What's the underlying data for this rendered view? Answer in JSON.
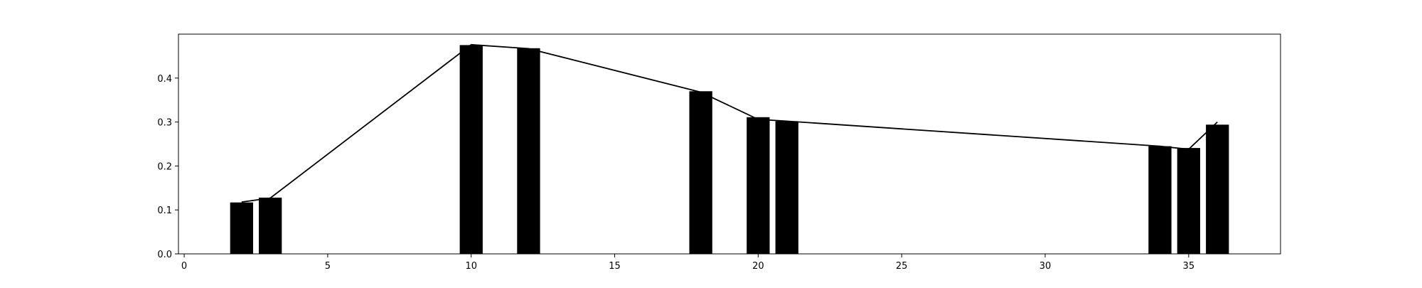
{
  "chart_data": {
    "type": "bar",
    "title": "",
    "xlabel": "",
    "ylabel": "",
    "xlim": [
      -0.2,
      38.2
    ],
    "ylim": [
      0,
      0.5
    ],
    "grid": false,
    "xticks": [
      "0",
      "5",
      "10",
      "15",
      "20",
      "25",
      "30",
      "35"
    ],
    "xtick_values": [
      0,
      5,
      10,
      15,
      20,
      25,
      30,
      35
    ],
    "yticks": [
      "0.0",
      "0.1",
      "0.2",
      "0.3",
      "0.4"
    ],
    "ytick_values": [
      0,
      0.1,
      0.2,
      0.3,
      0.4
    ],
    "bar_width": 0.8,
    "x": [
      2,
      3,
      10,
      12,
      18,
      20,
      21,
      34,
      35,
      36
    ],
    "bars": [
      0.117,
      0.128,
      0.475,
      0.468,
      0.37,
      0.311,
      0.302,
      0.245,
      0.241,
      0.294
    ],
    "line": [
      0.118,
      0.127,
      0.476,
      0.467,
      0.368,
      0.306,
      0.302,
      0.245,
      0.238,
      0.3
    ],
    "colors": {
      "bar": "#000000",
      "line": "#000000",
      "axes": "#000000"
    }
  }
}
